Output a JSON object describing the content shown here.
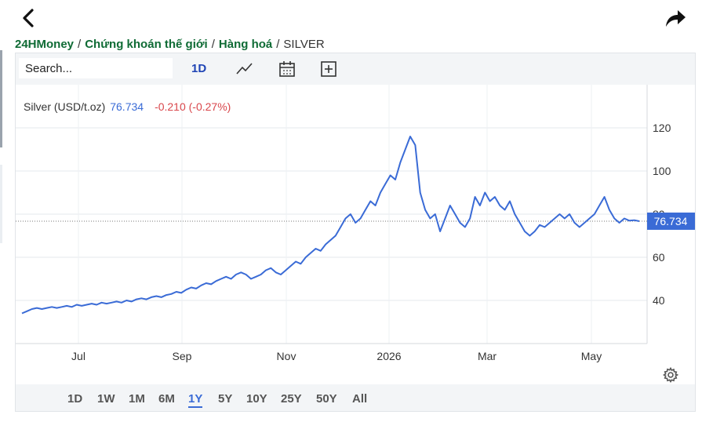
{
  "breadcrumb": {
    "items": [
      "24HMoney",
      "Chứng khoán thế giới",
      "Hàng hoá"
    ],
    "separator": "/",
    "current": "SILVER"
  },
  "toolbar": {
    "search_placeholder": "Search...",
    "interval": "1D",
    "icons": [
      "line-chart-icon",
      "calendar-icon",
      "plus-box-icon"
    ]
  },
  "legend": {
    "symbol": "Silver (USD/t.oz)",
    "price": "76.734",
    "change": "-0.210 (-0.27%)"
  },
  "price_tag": "76.734",
  "ranges": [
    "1D",
    "1W",
    "1M",
    "6M",
    "1Y",
    "5Y",
    "10Y",
    "25Y",
    "50Y",
    "All"
  ],
  "active_range": "1Y",
  "colors": {
    "line": "#3a6bd6",
    "brand": "#0f6b35",
    "negative": "#d9464b",
    "tag": "#3a6bd6"
  },
  "chart_data": {
    "type": "line",
    "x_ticks": [
      "Jul",
      "Sep",
      "Nov",
      "2026",
      "Mar",
      "May"
    ],
    "y_ticks": [
      40,
      60,
      80,
      100,
      120
    ],
    "ylim": [
      20,
      140
    ],
    "grid": true,
    "last_price_line": 76.734,
    "series": [
      {
        "name": "Silver (USD/t.oz)",
        "values": [
          34,
          35,
          36,
          36.5,
          36,
          36.5,
          37,
          36.5,
          37,
          37.5,
          37,
          38,
          37.5,
          38,
          38.5,
          38,
          39,
          38.5,
          39,
          39.5,
          39,
          40,
          39.5,
          40.5,
          41,
          40.5,
          41.5,
          42,
          41.5,
          42.5,
          43,
          44,
          43.5,
          45,
          46,
          45.5,
          47,
          48,
          47.5,
          49,
          50,
          51,
          50,
          52,
          53,
          52,
          50,
          51,
          52,
          54,
          55,
          53,
          52,
          54,
          56,
          58,
          57,
          60,
          62,
          64,
          63,
          66,
          68,
          70,
          74,
          78,
          80,
          76,
          78,
          82,
          86,
          84,
          90,
          94,
          98,
          96,
          104,
          110,
          116,
          112,
          90,
          82,
          78,
          80,
          72,
          78,
          84,
          80,
          76,
          74,
          78,
          88,
          84,
          90,
          86,
          88,
          84,
          82,
          86,
          80,
          76,
          72,
          70,
          72,
          75,
          74,
          76,
          78,
          80,
          78,
          80,
          76,
          74,
          76,
          78,
          80,
          84,
          88,
          82,
          78,
          76,
          78,
          77,
          77.2,
          76.734
        ]
      }
    ]
  }
}
